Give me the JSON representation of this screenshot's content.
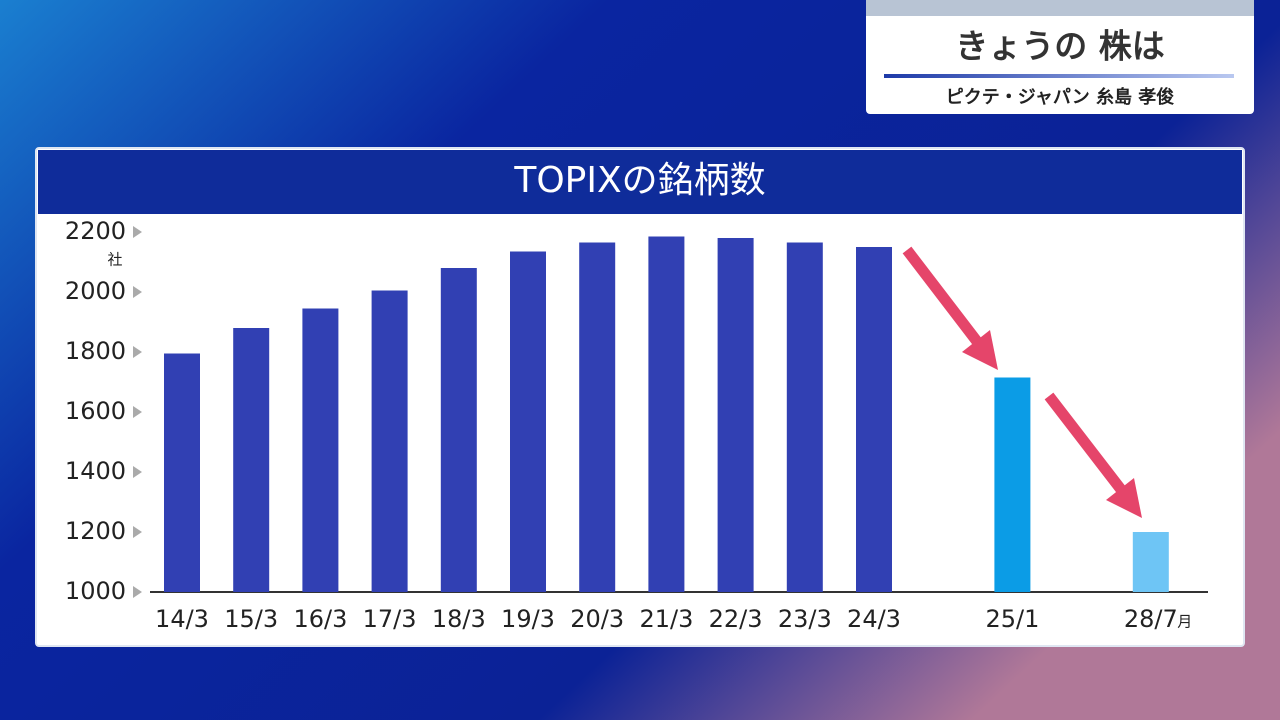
{
  "header": {
    "title": "きょうの 株は",
    "subtitle": "ピクテ・ジャパン 糸島 孝俊"
  },
  "chart_data": {
    "type": "bar",
    "title": "TOPIXの銘柄数",
    "categories": [
      "14/3",
      "15/3",
      "16/3",
      "17/3",
      "18/3",
      "19/3",
      "20/3",
      "21/3",
      "22/3",
      "23/3",
      "24/3",
      "25/1",
      "28/7"
    ],
    "values": [
      1795,
      1880,
      1945,
      2005,
      2080,
      2135,
      2165,
      2185,
      2180,
      2165,
      2150,
      1715,
      1200
    ],
    "colors": [
      "#3140b3",
      "#3140b3",
      "#3140b3",
      "#3140b3",
      "#3140b3",
      "#3140b3",
      "#3140b3",
      "#3140b3",
      "#3140b3",
      "#3140b3",
      "#3140b3",
      "#0b9ce6",
      "#6ec5f5"
    ],
    "y_unit": "社",
    "x_unit": "月",
    "ylim": [
      1000,
      2200
    ],
    "yticks": [
      1000,
      1200,
      1400,
      1600,
      1800,
      2000,
      2200
    ]
  }
}
